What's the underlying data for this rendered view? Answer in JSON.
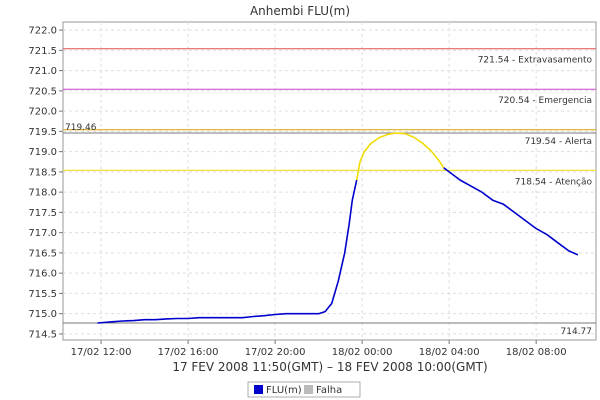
{
  "chart_data": {
    "type": "line",
    "title": "Anhembi FLU(m)",
    "xlabel": "17 FEV 2008 11:50(GMT) – 18 FEV 2008 10:00(GMT)",
    "ylabel": "",
    "x_tick_labels": [
      "17/02 12:00",
      "17/02 16:00",
      "17/02 20:00",
      "18/02 00:00",
      "18/02 04:00",
      "18/02 08:00"
    ],
    "x_tick_hours": [
      12,
      16,
      20,
      24,
      28,
      32
    ],
    "xlim_hours": [
      10.25,
      34.75
    ],
    "y_ticks": [
      "714.5",
      "715.0",
      "715.5",
      "716.0",
      "716.5",
      "717.0",
      "717.5",
      "718.0",
      "718.5",
      "719.0",
      "719.5",
      "720.0",
      "720.5",
      "721.0",
      "721.5",
      "722.0"
    ],
    "ylim": [
      714.35,
      722.2
    ],
    "grid": true,
    "legend_position": "bottom",
    "reference_lines": [
      {
        "value": 721.54,
        "label": "721.54 - Extravasamento",
        "color": "#e05050"
      },
      {
        "value": 720.54,
        "label": "720.54 - Emergencia",
        "color": "#cc44cc"
      },
      {
        "value": 719.54,
        "label": "719.54 - Alerta",
        "color": "#d7a400"
      },
      {
        "value": 718.54,
        "label": "718.54 - Atenção",
        "color": "#f0dc00"
      }
    ],
    "max_line": {
      "value": 719.46,
      "label": "719.46",
      "color": "#7a7a7a"
    },
    "min_line": {
      "value": 714.77,
      "label": "714.77",
      "color": "#7a7a7a"
    },
    "series": [
      {
        "name": "FLU(m)",
        "color": "#0000cc",
        "x": [
          11.83,
          12.5,
          13.0,
          13.5,
          14.0,
          14.5,
          15.0,
          15.5,
          16.0,
          16.5,
          17.0,
          17.5,
          18.0,
          18.5,
          19.0,
          19.5,
          20.0,
          20.5,
          21.0,
          21.5,
          22.0,
          22.3,
          22.6,
          22.9,
          23.2,
          23.4,
          23.55,
          23.75
        ],
        "y": [
          714.77,
          714.8,
          714.82,
          714.83,
          714.85,
          714.85,
          714.87,
          714.88,
          714.88,
          714.9,
          714.9,
          714.9,
          714.9,
          714.9,
          714.93,
          714.95,
          714.98,
          715.0,
          715.0,
          715.0,
          715.0,
          715.05,
          715.25,
          715.8,
          716.5,
          717.2,
          717.8,
          718.3
        ]
      },
      {
        "name": "",
        "color": "#f0dc00",
        "x": [
          23.75,
          23.9,
          24.1,
          24.4,
          24.8,
          25.2,
          25.6,
          26.0,
          26.4,
          26.8,
          27.2,
          27.5,
          27.75
        ],
        "y": [
          718.3,
          718.75,
          719.0,
          719.2,
          719.35,
          719.43,
          719.46,
          719.44,
          719.35,
          719.2,
          719.0,
          718.8,
          718.6
        ]
      },
      {
        "name": "",
        "color": "#0000cc",
        "x": [
          27.75,
          28.0,
          28.5,
          29.0,
          29.5,
          30.0,
          30.5,
          31.0,
          31.5,
          32.0,
          32.5,
          33.0,
          33.5,
          33.92
        ],
        "y": [
          718.6,
          718.5,
          718.3,
          718.15,
          718.0,
          717.8,
          717.7,
          717.5,
          717.3,
          717.1,
          716.95,
          716.75,
          716.55,
          716.45
        ]
      }
    ],
    "legend": [
      {
        "label": "FLU(m)",
        "color": "#0000cc"
      },
      {
        "label": "Falha",
        "color": "#bbbbbb"
      }
    ]
  }
}
